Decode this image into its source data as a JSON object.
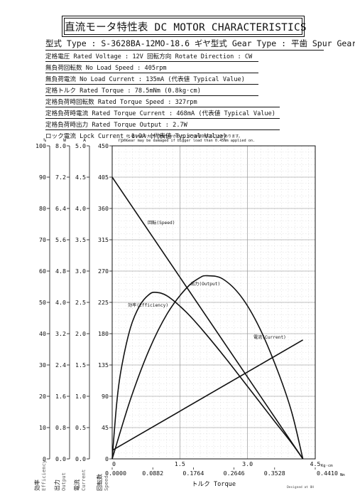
{
  "header": {
    "title": "直流モータ特性表 DC MOTOR CHARACTERISTICS"
  },
  "specs": {
    "model": "型式 Type : S-3628BA-12MO-18.6 ギヤ型式 Gear Type : 平歯  Spur Gear",
    "lines": [
      "定格電圧 Rated Voltage : 12V   回転方向 Rotate Direction : CW",
      "無負荷回転数 No Load Speed : 405rpm",
      "無負荷電流 No Load Current : 135mA (代表値 Typical Value)",
      "定格トルク Rated Torque : 78.5mNm (0.8kg·cm)",
      "定格負荷時回転数 Rated Torque Speed : 327rpm",
      "定格負荷時電流 Rated Torque Current : 468mA (代表値 Typical Value)",
      "定格負荷時出力 Rated Torque Output : 2.7W",
      "ロック電流 Lock Current :1.9A (代表値 Typical Value)"
    ],
    "warning": [
      "0.45Nmより大きい負荷がかかると、ギヤが破損することがあります。",
      "Gear may be damaged if bigger load than 0.45Nm applied on."
    ]
  },
  "chart_data": {
    "type": "line",
    "x_axis": {
      "kgcm_ticks": [
        "0",
        "1.5",
        "3.0",
        "4.5"
      ],
      "kgcm_unit": "Kg·cm",
      "nm_ticks": [
        "0.0000",
        "0.0882",
        "0.1764",
        "0.2646",
        "0.3528",
        "0.4410"
      ],
      "nm_unit": "Nm",
      "xlim_nm": [
        0,
        0.441
      ],
      "label": "トルク Torque"
    },
    "y_axes": [
      {
        "key": "efficiency",
        "unit": "%",
        "label_jp": "効率",
        "label_en": "Efficiency",
        "ticks": [
          "100",
          "90",
          "80",
          "70",
          "60",
          "50",
          "40",
          "30",
          "20",
          "10",
          "0"
        ]
      },
      {
        "key": "output",
        "unit": "W",
        "label_jp": "出力",
        "label_en": "Output",
        "ticks": [
          "8.0",
          "7.2",
          "6.4",
          "5.6",
          "4.8",
          "4.0",
          "3.2",
          "2.4",
          "1.6",
          "0.8",
          "0.0"
        ]
      },
      {
        "key": "current",
        "unit": "A",
        "label_jp": "電流",
        "label_en": "Current",
        "ticks": [
          "5.0",
          "4.5",
          "4.0",
          "3.5",
          "3.0",
          "2.5",
          "2.0",
          "1.5",
          "1.0",
          "0.5",
          "0.0"
        ]
      },
      {
        "key": "speed",
        "unit": "rpm",
        "label_jp": "回転数",
        "label_en": "Speed",
        "ticks": [
          "450",
          "405",
          "360",
          "315",
          "270",
          "225",
          "180",
          "135",
          "90",
          "45",
          "0"
        ]
      }
    ],
    "series": [
      {
        "name": "回転(Speed)",
        "axis": "speed",
        "points": [
          [
            0,
            405
          ],
          [
            0.4141,
            0
          ]
        ]
      },
      {
        "name": "電流(Current)",
        "axis": "current",
        "points": [
          [
            0,
            0.135
          ],
          [
            0.4141,
            1.9
          ]
        ]
      },
      {
        "name": "出力(Output)",
        "axis": "output",
        "points": [
          [
            0,
            0
          ],
          [
            0.04,
            1.53
          ],
          [
            0.08,
            2.78
          ],
          [
            0.12,
            3.72
          ],
          [
            0.16,
            4.35
          ],
          [
            0.19,
            4.63
          ],
          [
            0.207,
            4.68
          ],
          [
            0.24,
            4.6
          ],
          [
            0.28,
            4.15
          ],
          [
            0.32,
            3.35
          ],
          [
            0.36,
            2.23
          ],
          [
            0.39,
            1.19
          ],
          [
            0.4141,
            0
          ]
        ]
      },
      {
        "name": "効率(Efficiency)",
        "axis": "efficiency",
        "points": [
          [
            0,
            0
          ],
          [
            0.01,
            18
          ],
          [
            0.02,
            29
          ],
          [
            0.04,
            42
          ],
          [
            0.06,
            49
          ],
          [
            0.08,
            52.5
          ],
          [
            0.095,
            53.2
          ],
          [
            0.12,
            52
          ],
          [
            0.16,
            47
          ],
          [
            0.2,
            40.5
          ],
          [
            0.25,
            31.5
          ],
          [
            0.3,
            22
          ],
          [
            0.35,
            12.5
          ],
          [
            0.39,
            5
          ],
          [
            0.4141,
            0
          ]
        ]
      }
    ],
    "grid": true,
    "footer_note": "Designed at OH"
  }
}
